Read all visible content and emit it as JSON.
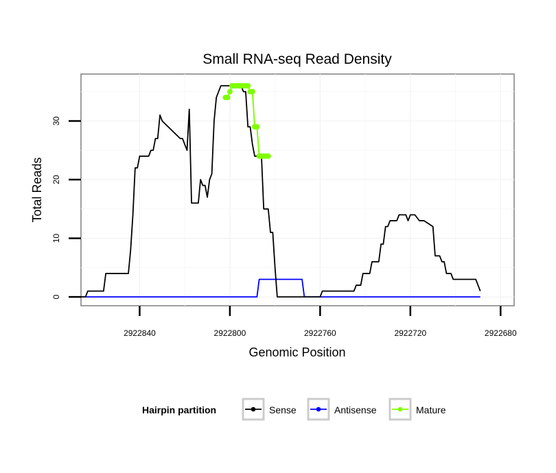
{
  "chart_data": {
    "type": "line",
    "title": "Small RNA-seq Read Density",
    "xlabel": "Genomic Position",
    "ylabel": "Total Reads",
    "x_reversed": true,
    "xlim": [
      2922866,
      2922674
    ],
    "ylim": [
      -1.5,
      38
    ],
    "x_ticks": [
      2922840,
      2922800,
      2922760,
      2922720,
      2922680
    ],
    "x_tick_labels": [
      "2922840",
      "2922800",
      "2922760",
      "2922720",
      "2922680"
    ],
    "y_ticks": [
      0,
      10,
      20,
      30
    ],
    "y_tick_labels": [
      "0",
      "10",
      "20",
      "30"
    ],
    "legend": {
      "title": "Hairpin partition",
      "position": "bottom",
      "entries": [
        {
          "label": "Sense",
          "color": "#000000"
        },
        {
          "label": "Antisense",
          "color": "#0000ff"
        },
        {
          "label": "Mature",
          "color": "#7fff00"
        }
      ]
    },
    "series": [
      {
        "name": "Sense",
        "color": "#000000",
        "x": [
          2922866,
          2922864,
          2922863,
          2922856,
          2922855,
          2922845,
          2922844,
          2922843,
          2922842,
          2922841,
          2922840,
          2922836,
          2922835,
          2922834,
          2922833,
          2922832,
          2922831,
          2922830,
          2922822,
          2922821,
          2922820,
          2922819,
          2922818,
          2922817,
          2922814,
          2922813,
          2922812,
          2922811,
          2922810,
          2922809,
          2922808,
          2922807,
          2922806,
          2922805,
          2922804,
          2922803,
          2922802,
          2922801,
          2922800,
          2922795,
          2922794,
          2922793,
          2922792,
          2922791,
          2922790,
          2922789,
          2922788,
          2922787,
          2922786,
          2922785,
          2922784,
          2922783,
          2922782,
          2922781,
          2922780,
          2922779,
          2922778,
          2922777,
          2922760,
          2922759,
          2922745,
          2922744,
          2922742,
          2922741,
          2922738,
          2922737,
          2922734,
          2922733,
          2922732,
          2922731,
          2922730,
          2922729,
          2922726,
          2922725,
          2922722,
          2922721,
          2922720,
          2922718,
          2922716,
          2922714,
          2922710,
          2922709,
          2922707,
          2922706,
          2922705,
          2922704,
          2922702,
          2922701,
          2922700,
          2922697,
          2922696,
          2922691,
          2922690,
          2922689
        ],
        "y": [
          0,
          0,
          1,
          1,
          4,
          4,
          8,
          14,
          22,
          22,
          24,
          24,
          25,
          25,
          27,
          27,
          31,
          30,
          27,
          27,
          26,
          25,
          32,
          16,
          16,
          20,
          19,
          19,
          17,
          20,
          21,
          30,
          34,
          35,
          36,
          36,
          36,
          36,
          36,
          36,
          35,
          35,
          29,
          29,
          26,
          24,
          24,
          24,
          24,
          15,
          15,
          15,
          11,
          11,
          5,
          0,
          0,
          0,
          0,
          1,
          1,
          2,
          2,
          4,
          4,
          6,
          6,
          9,
          9,
          12,
          12,
          13,
          13,
          14,
          14,
          13,
          14,
          14,
          13,
          13,
          12,
          7,
          7,
          6,
          6,
          4,
          4,
          3,
          3,
          3,
          3,
          3,
          2,
          1
        ]
      },
      {
        "name": "Antisense",
        "color": "#0000ff",
        "x": [
          2922866,
          2922788,
          2922787,
          2922768,
          2922767,
          2922689
        ],
        "y": [
          0,
          0,
          3,
          3,
          0,
          0
        ]
      },
      {
        "name": "Mature",
        "color": "#7fff00",
        "x": [
          2922802,
          2922801,
          2922800,
          2922799,
          2922798,
          2922797,
          2922796,
          2922795,
          2922794,
          2922793,
          2922792,
          2922791,
          2922790,
          2922789,
          2922788,
          2922787,
          2922786,
          2922785,
          2922784,
          2922783
        ],
        "y": [
          34,
          34,
          35,
          36,
          36,
          36,
          36,
          36,
          36,
          36,
          36,
          35,
          35,
          29,
          29,
          24,
          24,
          24,
          24,
          24
        ]
      }
    ]
  }
}
